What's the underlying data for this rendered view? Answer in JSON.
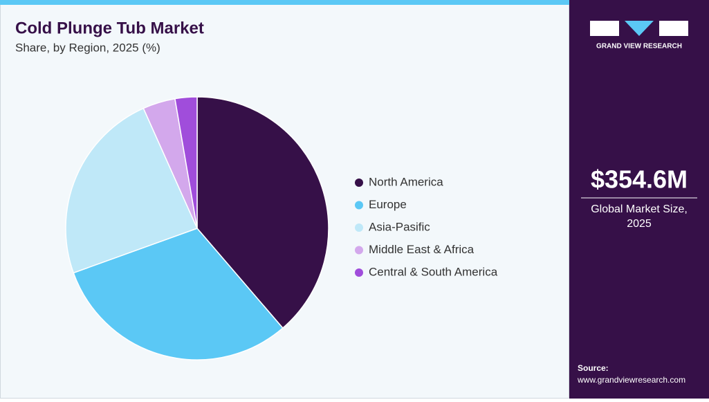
{
  "chart_data": {
    "type": "pie",
    "title": "Cold Plunge Tub Market",
    "subtitle": "Share, by Region, 2025 (%)",
    "categories": [
      "North America",
      "Europe",
      "Asia-Pasific",
      "Middle East & Africa",
      "Central & South America"
    ],
    "values": [
      38.7,
      30.8,
      23.8,
      4.0,
      2.7
    ],
    "colors": [
      "#361048",
      "#5bc8f5",
      "#bfe8f8",
      "#d3a8ec",
      "#a04ddb"
    ],
    "legend": "right"
  },
  "sidebar": {
    "brand": "GRAND VIEW RESEARCH",
    "market_size": "$354.6M",
    "market_size_label": "Global Market Size, 2025",
    "source_label": "Source:",
    "source_url": "www.grandviewresearch.com"
  }
}
